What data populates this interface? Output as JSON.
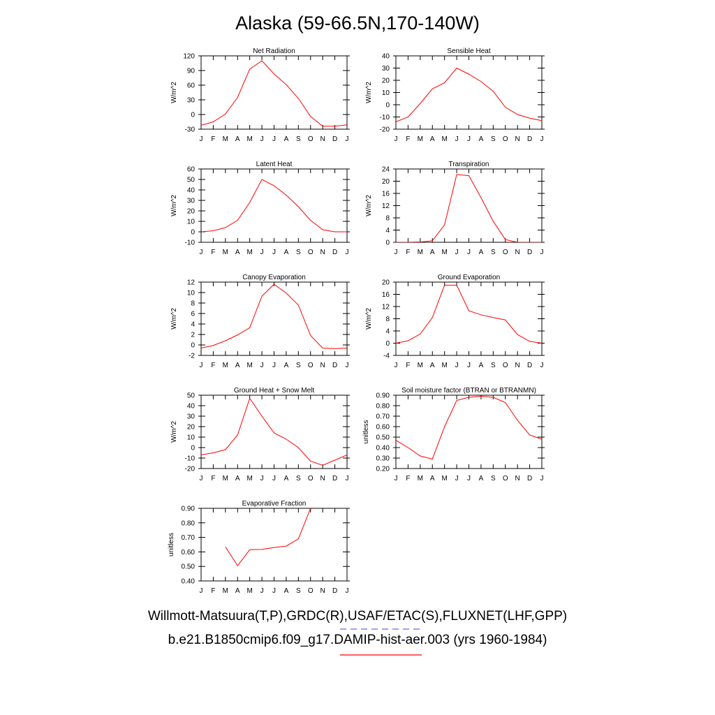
{
  "title": "Alaska (59-66.5N,170-140W)",
  "legend": {
    "line1": "Willmott-Matsuura(T,P),GRDC(R),USAF/ETAC(S),FLUXNET(LHF,GPP)",
    "line1_color": "#6666ff",
    "line1_style": "dashed",
    "line2": "b.e21.B1850cmip6.f09_g17.DAMIP-hist-aer.003 (yrs 1960-1984)",
    "line2_color": "#ff0000",
    "line2_style": "solid"
  },
  "chart_data": [
    {
      "type": "line",
      "title": "Net Radiation",
      "ylabel": "W/m^2",
      "categories": [
        "J",
        "F",
        "M",
        "A",
        "M",
        "J",
        "J",
        "A",
        "S",
        "O",
        "N",
        "D",
        "J"
      ],
      "ylim": [
        -30,
        120
      ],
      "yticks": [
        "-30",
        "0",
        "30",
        "60",
        "90",
        "120"
      ],
      "series": [
        {
          "color": "#ff0000",
          "values": [
            -22,
            -15,
            1,
            35,
            93,
            110,
            83,
            61,
            33,
            -4,
            -24,
            -24,
            -21
          ]
        }
      ]
    },
    {
      "type": "line",
      "title": "Sensible Heat",
      "ylabel": "W/m^2",
      "categories": [
        "J",
        "F",
        "M",
        "A",
        "M",
        "J",
        "J",
        "A",
        "S",
        "O",
        "N",
        "D",
        "J"
      ],
      "ylim": [
        -20,
        40
      ],
      "yticks": [
        "-20",
        "-10",
        "0",
        "10",
        "20",
        "30",
        "40"
      ],
      "series": [
        {
          "color": "#ff0000",
          "values": [
            -14,
            -10,
            1,
            13,
            18,
            30,
            25,
            19,
            11,
            -2,
            -8,
            -11,
            -13
          ]
        }
      ]
    },
    {
      "type": "line",
      "title": "Latent Heat",
      "ylabel": "W/m^2",
      "categories": [
        "J",
        "F",
        "M",
        "A",
        "M",
        "J",
        "J",
        "A",
        "S",
        "O",
        "N",
        "D",
        "J"
      ],
      "ylim": [
        -10,
        60
      ],
      "yticks": [
        "-10",
        "0",
        "10",
        "20",
        "30",
        "40",
        "50",
        "60"
      ],
      "series": [
        {
          "color": "#ff0000",
          "values": [
            0,
            1,
            4,
            11,
            28,
            50,
            44,
            35,
            24,
            11,
            2,
            0,
            0
          ]
        }
      ]
    },
    {
      "type": "line",
      "title": "Transpiration",
      "ylabel": "W/m^2",
      "categories": [
        "J",
        "F",
        "M",
        "A",
        "M",
        "J",
        "J",
        "A",
        "S",
        "O",
        "N",
        "D",
        "J"
      ],
      "ylim": [
        0,
        24
      ],
      "yticks": [
        "0",
        "4",
        "8",
        "12",
        "16",
        "20",
        "24"
      ],
      "series": [
        {
          "color": "#ff0000",
          "values": [
            0,
            0,
            0.1,
            0.5,
            5.7,
            22.2,
            21.8,
            14.6,
            6.9,
            0.9,
            0,
            0,
            0
          ]
        }
      ]
    },
    {
      "type": "line",
      "title": "Canopy Evaporation",
      "ylabel": "W/m^2",
      "categories": [
        "J",
        "F",
        "M",
        "A",
        "M",
        "J",
        "J",
        "A",
        "S",
        "O",
        "N",
        "D",
        "J"
      ],
      "ylim": [
        -2,
        12
      ],
      "yticks": [
        "-2",
        "0",
        "2",
        "4",
        "6",
        "8",
        "10",
        "12"
      ],
      "series": [
        {
          "color": "#ff0000",
          "values": [
            -0.6,
            -0.1,
            0.8,
            1.9,
            3.3,
            9.3,
            11.6,
            9.9,
            7.6,
            1.8,
            -0.6,
            -0.7,
            -0.6
          ]
        }
      ]
    },
    {
      "type": "line",
      "title": "Ground Evaporation",
      "ylabel": "W/m^2",
      "categories": [
        "J",
        "F",
        "M",
        "A",
        "M",
        "J",
        "J",
        "A",
        "S",
        "O",
        "N",
        "D",
        "J"
      ],
      "ylim": [
        -4,
        20
      ],
      "yticks": [
        "-4",
        "0",
        "4",
        "8",
        "12",
        "16",
        "20"
      ],
      "series": [
        {
          "color": "#ff0000",
          "values": [
            0,
            0.8,
            3.0,
            8.4,
            19.0,
            19.0,
            10.6,
            9.3,
            8.4,
            7.6,
            2.8,
            0.6,
            0
          ]
        }
      ]
    },
    {
      "type": "line",
      "title": "Ground Heat + Snow Melt",
      "ylabel": "W/m^2",
      "categories": [
        "J",
        "F",
        "M",
        "A",
        "M",
        "J",
        "J",
        "A",
        "S",
        "O",
        "N",
        "D",
        "J"
      ],
      "ylim": [
        -20,
        50
      ],
      "yticks": [
        "-20",
        "-10",
        "0",
        "10",
        "20",
        "30",
        "40",
        "50"
      ],
      "series": [
        {
          "color": "#ff0000",
          "values": [
            -7,
            -5,
            -2,
            12,
            47,
            30,
            14,
            8,
            0,
            -13,
            -17,
            -12,
            -7
          ]
        }
      ]
    },
    {
      "type": "line",
      "title": "Soil moisture factor (BTRAN or BTRANMN)",
      "ylabel": "unitless",
      "categories": [
        "J",
        "F",
        "M",
        "A",
        "M",
        "J",
        "J",
        "A",
        "S",
        "O",
        "N",
        "D",
        "J"
      ],
      "ylim": [
        0.2,
        0.9
      ],
      "yticks": [
        "0.20",
        "0.30",
        "0.40",
        "0.50",
        "0.60",
        "0.70",
        "0.80",
        "0.90"
      ],
      "series": [
        {
          "color": "#ff0000",
          "values": [
            0.47,
            0.4,
            0.32,
            0.29,
            0.6,
            0.85,
            0.88,
            0.89,
            0.88,
            0.83,
            0.66,
            0.52,
            0.48
          ]
        }
      ]
    },
    {
      "type": "line",
      "title": "Evaporative Fraction",
      "ylabel": "unitless",
      "categories": [
        "J",
        "F",
        "M",
        "A",
        "M",
        "J",
        "J",
        "A",
        "S",
        "O",
        "N",
        "D",
        "J"
      ],
      "ylim": [
        0.4,
        0.9
      ],
      "yticks": [
        "0.40",
        "0.50",
        "0.60",
        "0.70",
        "0.80",
        "0.90"
      ],
      "series": [
        {
          "color": "#ff0000",
          "values": [
            null,
            null,
            0.635,
            0.505,
            0.615,
            0.617,
            0.63,
            0.64,
            0.69,
            0.9,
            null,
            null,
            null
          ]
        }
      ]
    }
  ]
}
